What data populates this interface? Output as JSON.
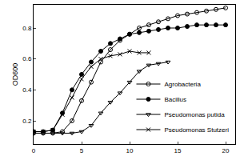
{
  "chart_data": {
    "type": "line",
    "y_label": "OD600",
    "xlim": [
      0,
      21
    ],
    "xticks": [
      0,
      5,
      10,
      15,
      20
    ],
    "ylim": [
      0.05,
      0.95
    ],
    "yticks": [
      0.2,
      0.4,
      0.6,
      0.8
    ],
    "grid": false,
    "legend": "lower right",
    "series": [
      {
        "name": "Agrobacteria",
        "color": "#000000",
        "marker": "circle-open",
        "x": [
          0,
          1,
          2,
          3,
          4,
          5,
          6,
          7,
          8,
          9,
          10,
          11,
          12,
          13,
          14,
          15,
          16,
          17,
          18,
          19,
          20
        ],
        "values": [
          0.12,
          0.12,
          0.12,
          0.13,
          0.2,
          0.33,
          0.45,
          0.58,
          0.66,
          0.72,
          0.76,
          0.8,
          0.82,
          0.84,
          0.86,
          0.88,
          0.89,
          0.9,
          0.91,
          0.92,
          0.93
        ]
      },
      {
        "name": "Bacillus",
        "color": "#000000",
        "marker": "circle",
        "x": [
          0,
          1,
          2,
          3,
          4,
          5,
          6,
          7,
          8,
          9,
          10,
          11,
          12,
          13,
          14,
          15,
          16,
          17,
          18,
          19,
          20
        ],
        "values": [
          0.13,
          0.13,
          0.14,
          0.25,
          0.4,
          0.5,
          0.58,
          0.65,
          0.7,
          0.73,
          0.76,
          0.77,
          0.78,
          0.79,
          0.8,
          0.8,
          0.81,
          0.82,
          0.82,
          0.82,
          0.82
        ]
      },
      {
        "name": "Pseudomonas putida",
        "color": "#000000",
        "marker": "triangle-down-open",
        "x": [
          0,
          1,
          2,
          3,
          4,
          5,
          6,
          7,
          8,
          9,
          10,
          11,
          12,
          13,
          14
        ],
        "values": [
          0.12,
          0.12,
          0.12,
          0.12,
          0.12,
          0.13,
          0.17,
          0.25,
          0.32,
          0.38,
          0.45,
          0.52,
          0.56,
          0.57,
          0.58
        ]
      },
      {
        "name": "Pseudomonas Stutzeri",
        "color": "#000000",
        "marker": "x-thin-open",
        "x": [
          0,
          1,
          2,
          3,
          4,
          5,
          6,
          7,
          8,
          9,
          10,
          11,
          12
        ],
        "values": [
          0.13,
          0.13,
          0.14,
          0.24,
          0.35,
          0.47,
          0.55,
          0.6,
          0.62,
          0.63,
          0.65,
          0.64,
          0.64
        ]
      }
    ]
  }
}
